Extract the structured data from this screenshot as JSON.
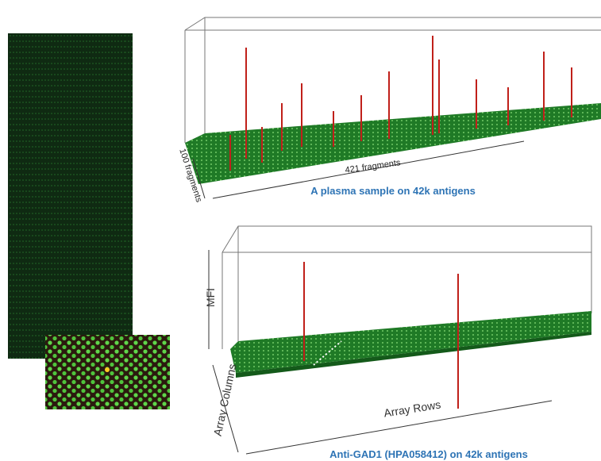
{
  "top_panel": {
    "depth_label": "100 fragments",
    "width_label": "421 fragments",
    "caption": "A plasma sample on 42k antigens"
  },
  "bottom_panel": {
    "z_label": "MFI",
    "y_label": "Array Columns",
    "x_label": "Array Rows",
    "caption": "Anti-GAD1 (HPA058412) on 42k antigens"
  }
}
